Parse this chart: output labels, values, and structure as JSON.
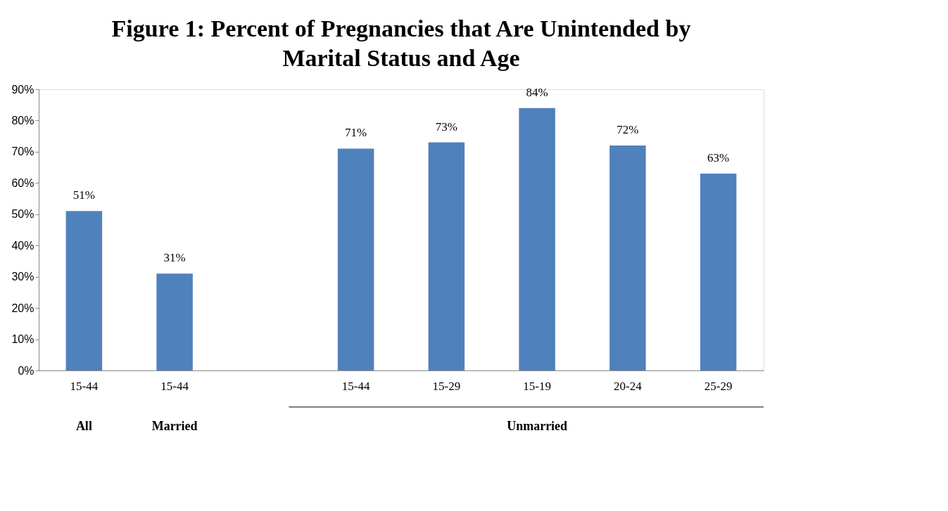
{
  "chart_data": {
    "type": "bar",
    "title": [
      "Figure 1: Percent of Pregnancies that Are Unintended by",
      "Marital Status and Age"
    ],
    "categories": [
      "15-44",
      "15-44",
      null,
      "15-44",
      "15-29",
      "15-19",
      "20-24",
      "25-29"
    ],
    "values": [
      51,
      31,
      null,
      71,
      73,
      84,
      72,
      63
    ],
    "value_labels": [
      "51%",
      "31%",
      null,
      "71%",
      "73%",
      "84%",
      "72%",
      "63%"
    ],
    "color": "#4f81bd",
    "ylim": [
      0,
      90
    ],
    "yticks": [
      {
        "value": 0,
        "label": "0%"
      },
      {
        "value": 10,
        "label": "10%"
      },
      {
        "value": 20,
        "label": "20%"
      },
      {
        "value": 30,
        "label": "30%"
      },
      {
        "value": 40,
        "label": "40%"
      },
      {
        "value": 50,
        "label": "50%"
      },
      {
        "value": 60,
        "label": "60%"
      },
      {
        "value": 70,
        "label": "70%"
      },
      {
        "value": 80,
        "label": "80%"
      },
      {
        "value": 90,
        "label": "90%"
      }
    ],
    "annotations": [
      "All",
      "Married",
      "Unmarried"
    ],
    "grid": false
  }
}
